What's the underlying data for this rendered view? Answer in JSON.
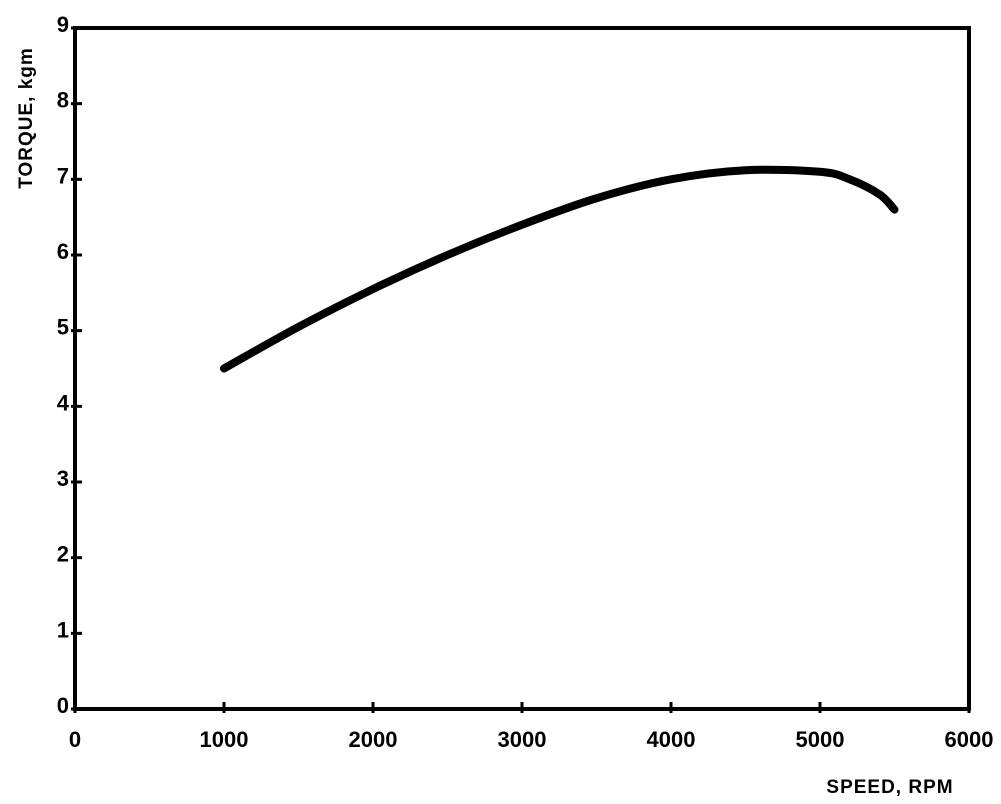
{
  "chart_data": {
    "type": "line",
    "title": "",
    "xlabel": "SPEED, RPM",
    "ylabel": "TORQUE, kgm",
    "xlim": [
      0,
      6000
    ],
    "ylim": [
      0,
      9
    ],
    "x_ticks": [
      0,
      1000,
      2000,
      3000,
      4000,
      5000,
      6000
    ],
    "y_ticks": [
      0,
      1,
      2,
      3,
      4,
      5,
      6,
      7,
      8,
      9
    ],
    "x_tick_labels": [
      "0",
      "1000",
      "2000",
      "3000",
      "4000",
      "5000",
      "6000"
    ],
    "y_tick_labels": [
      "0",
      "1",
      "2",
      "3",
      "4",
      "5",
      "6",
      "7",
      "8",
      "9"
    ],
    "grid": false,
    "series": [
      {
        "x": [
          1000,
          1500,
          2000,
          2500,
          3000,
          3500,
          4000,
          4500,
          5000,
          5200,
          5400,
          5500
        ],
        "y": [
          4.5,
          5.05,
          5.55,
          6.0,
          6.4,
          6.75,
          7.0,
          7.12,
          7.1,
          7.0,
          6.8,
          6.6
        ]
      }
    ],
    "colors": {
      "line": "#000000",
      "axis": "#000000",
      "background": "#ffffff"
    }
  }
}
